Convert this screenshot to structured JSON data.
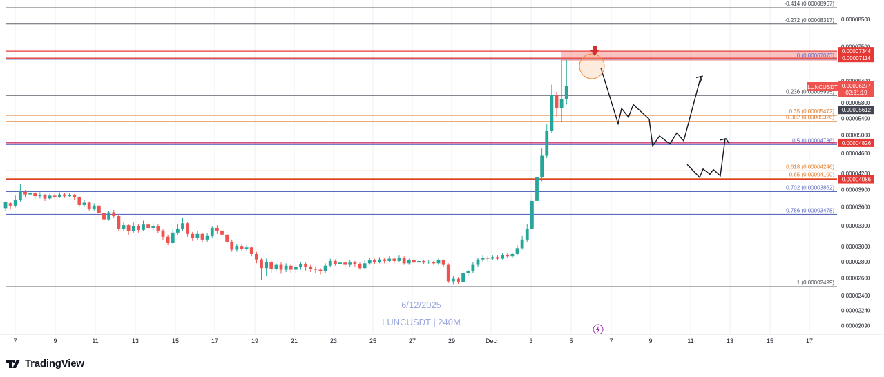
{
  "brand": {
    "name": "TradingView"
  },
  "watermark": {
    "date": "6/12/2025",
    "symbol": "LUNCUSDT | 240M"
  },
  "chart_data": {
    "type": "candlestick",
    "symbol_tag": "LUNCUSDT",
    "last_price": "0.00006277",
    "countdown": "02:31:19",
    "price_axis_ticks": [
      "0.00008500",
      "0.00007500",
      "0.00006400",
      "0.00005800",
      "0.00005400",
      "0.00005000",
      "0.00004600",
      "0.00004200",
      "0.00003900",
      "0.00003600",
      "0.00003300",
      "0.00003000",
      "0.00002800",
      "0.00002600",
      "0.00002400",
      "0.00002240",
      "0.00002090"
    ],
    "price_axis_values": [
      8.5e-05,
      7.5e-05,
      6.4e-05,
      5.8e-05,
      5.4e-05,
      5e-05,
      4.6e-05,
      4.2e-05,
      3.9e-05,
      3.6e-05,
      3.3e-05,
      3e-05,
      2.8e-05,
      2.6e-05,
      2.4e-05,
      2.24e-05,
      2.09e-05
    ],
    "price_badges": [
      {
        "text": "0.00007344",
        "value": 7.344e-05,
        "color": "#e53935"
      },
      {
        "text": "0.00007114",
        "value": 7.114e-05,
        "color": "#e53935"
      },
      {
        "text": "0.00005612",
        "value": 5.612e-05,
        "color": "#434651"
      },
      {
        "text": "0.00004826",
        "value": 4.826e-05,
        "color": "#e53935"
      },
      {
        "text": "0.00004086",
        "value": 4.086e-05,
        "color": "#e53935"
      }
    ],
    "x_labels": [
      "7",
      "9",
      "11",
      "13",
      "15",
      "17",
      "19",
      "21",
      "23",
      "25",
      "27",
      "29",
      "Dec",
      "3",
      "5",
      "7",
      "9",
      "11",
      "13",
      "15",
      "17"
    ],
    "fib_levels": [
      {
        "label": "-0.414 (0.00008967)",
        "value": 8.967e-05,
        "color": "#434651"
      },
      {
        "label": "-0.272 (0.00008317)",
        "value": 8.317e-05,
        "color": "#434651"
      },
      {
        "label": "0 (0.00007073)",
        "value": 7.073e-05,
        "color": "#5b6bc0"
      },
      {
        "label": "0.236 (0.00005995)",
        "value": 5.995e-05,
        "color": "#434651"
      },
      {
        "label": "0.35 (0.00005472)",
        "value": 5.472e-05,
        "color": "#e07a2a"
      },
      {
        "label": "0.382 (0.00005326)",
        "value": 5.326e-05,
        "color": "#e07a2a"
      },
      {
        "label": "0.5 (0.00004786)",
        "value": 4.786e-05,
        "color": "#5b6bc0"
      },
      {
        "label": "0.618 (0.00004246)",
        "value": 4.246e-05,
        "color": "#e07a2a"
      },
      {
        "label": "0.65 (0.00004100)",
        "value": 4.1e-05,
        "color": "#e07a2a"
      },
      {
        "label": "0.702 (0.00003862)",
        "value": 3.862e-05,
        "color": "#5b6bc0"
      },
      {
        "label": "0.786 (0.00003478)",
        "value": 3.478e-05,
        "color": "#5b6bc0"
      },
      {
        "label": "1 (0.00002499)",
        "value": 2.499e-05,
        "color": "#434651"
      }
    ],
    "horizontal_levels": [
      {
        "value": 7.344e-05,
        "color": "#e53935"
      },
      {
        "value": 7.114e-05,
        "color": "#e53935"
      },
      {
        "value": 4.826e-05,
        "color": "#c2185b"
      },
      {
        "value": 4.086e-05,
        "color": "#e53935"
      },
      {
        "value": 3.862e-05,
        "color": "#5b6bc0"
      },
      {
        "value": 3.478e-05,
        "color": "#5b6bc0"
      }
    ],
    "colors": {
      "up": "#26a69a",
      "down": "#ef5350",
      "bg": "#ffffff",
      "grid": "#eceff3"
    },
    "candles": [
      [
        3.58e-05,
        3.68e-05,
        3.69e-05,
        3.54e-05
      ],
      [
        3.66e-05,
        3.62e-05,
        3.68e-05,
        3.56e-05
      ],
      [
        3.62e-05,
        3.72e-05,
        3.79e-05,
        3.59e-05
      ],
      [
        3.72e-05,
        3.86e-05,
        4e-05,
        3.69e-05
      ],
      [
        3.86e-05,
        3.81e-05,
        3.89e-05,
        3.77e-05
      ],
      [
        3.81e-05,
        3.84e-05,
        3.88e-05,
        3.78e-05
      ],
      [
        3.84e-05,
        3.78e-05,
        3.86e-05,
        3.74e-05
      ],
      [
        3.78e-05,
        3.8e-05,
        3.85e-05,
        3.74e-05
      ],
      [
        3.8e-05,
        3.74e-05,
        3.82e-05,
        3.7e-05
      ],
      [
        3.74e-05,
        3.79e-05,
        3.84e-05,
        3.72e-05
      ],
      [
        3.79e-05,
        3.77e-05,
        3.83e-05,
        3.73e-05
      ],
      [
        3.77e-05,
        3.81e-05,
        3.85e-05,
        3.75e-05
      ],
      [
        3.81e-05,
        3.78e-05,
        3.84e-05,
        3.75e-05
      ],
      [
        3.78e-05,
        3.8e-05,
        3.83e-05,
        3.76e-05
      ],
      [
        3.8e-05,
        3.76e-05,
        3.82e-05,
        3.72e-05
      ],
      [
        3.76e-05,
        3.63e-05,
        3.78e-05,
        3.6e-05
      ],
      [
        3.63e-05,
        3.67e-05,
        3.71e-05,
        3.6e-05
      ],
      [
        3.67e-05,
        3.57e-05,
        3.69e-05,
        3.54e-05
      ],
      [
        3.57e-05,
        3.62e-05,
        3.66e-05,
        3.54e-05
      ],
      [
        3.62e-05,
        3.5e-05,
        3.64e-05,
        3.45e-05
      ],
      [
        3.5e-05,
        3.4e-05,
        3.52e-05,
        3.36e-05
      ],
      [
        3.4e-05,
        3.51e-05,
        3.53e-05,
        3.38e-05
      ],
      [
        3.51e-05,
        3.45e-05,
        3.55e-05,
        3.42e-05
      ],
      [
        3.45e-05,
        3.26e-05,
        3.47e-05,
        3.22e-05
      ],
      [
        3.26e-05,
        3.31e-05,
        3.36e-05,
        3.22e-05
      ],
      [
        3.31e-05,
        3.22e-05,
        3.33e-05,
        3.17e-05
      ],
      [
        3.22e-05,
        3.3e-05,
        3.36e-05,
        3.2e-05
      ],
      [
        3.3e-05,
        3.24e-05,
        3.33e-05,
        3.2e-05
      ],
      [
        3.24e-05,
        3.32e-05,
        3.38e-05,
        3.22e-05
      ],
      [
        3.32e-05,
        3.27e-05,
        3.35e-05,
        3.24e-05
      ],
      [
        3.27e-05,
        3.3e-05,
        3.34e-05,
        3.24e-05
      ],
      [
        3.3e-05,
        3.23e-05,
        3.32e-05,
        3.19e-05
      ],
      [
        3.23e-05,
        3.14e-05,
        3.25e-05,
        3.1e-05
      ],
      [
        3.14e-05,
        3.05e-05,
        3.17e-05,
        3.02e-05
      ],
      [
        3.05e-05,
        3.2e-05,
        3.25e-05,
        3.03e-05
      ],
      [
        3.2e-05,
        3.26e-05,
        3.33e-05,
        3.17e-05
      ],
      [
        3.26e-05,
        3.34e-05,
        3.43e-05,
        3.22e-05
      ],
      [
        3.34e-05,
        3.18e-05,
        3.36e-05,
        3.14e-05
      ],
      [
        3.18e-05,
        3.12e-05,
        3.21e-05,
        3.08e-05
      ],
      [
        3.12e-05,
        3.18e-05,
        3.22e-05,
        3.09e-05
      ],
      [
        3.18e-05,
        3.1e-05,
        3.2e-05,
        3.06e-05
      ],
      [
        3.1e-05,
        3.15e-05,
        3.19e-05,
        3.07e-05
      ],
      [
        3.15e-05,
        3.27e-05,
        3.3e-05,
        3.13e-05
      ],
      [
        3.27e-05,
        3.23e-05,
        3.31e-05,
        3.18e-05
      ],
      [
        3.23e-05,
        3.17e-05,
        3.25e-05,
        3.13e-05
      ],
      [
        3.17e-05,
        3.07e-05,
        3.19e-05,
        3.04e-05
      ],
      [
        3.07e-05,
        2.96e-05,
        3.1e-05,
        2.93e-05
      ],
      [
        2.96e-05,
        3.01e-05,
        3.04e-05,
        2.93e-05
      ],
      [
        3.01e-05,
        2.97e-05,
        3.03e-05,
        2.94e-05
      ],
      [
        2.97e-05,
        2.99e-05,
        3.02e-05,
        2.94e-05
      ],
      [
        2.99e-05,
        2.9e-05,
        3e-05,
        2.87e-05
      ],
      [
        2.9e-05,
        2.83e-05,
        2.93e-05,
        2.78e-05
      ],
      [
        2.83e-05,
        2.72e-05,
        2.85e-05,
        2.58e-05
      ],
      [
        2.72e-05,
        2.8e-05,
        2.84e-05,
        2.62e-05
      ],
      [
        2.8e-05,
        2.71e-05,
        2.82e-05,
        2.66e-05
      ],
      [
        2.71e-05,
        2.76e-05,
        2.78e-05,
        2.68e-05
      ],
      [
        2.76e-05,
        2.7e-05,
        2.79e-05,
        2.65e-05
      ],
      [
        2.7e-05,
        2.75e-05,
        2.78e-05,
        2.67e-05
      ],
      [
        2.75e-05,
        2.7e-05,
        2.77e-05,
        2.66e-05
      ],
      [
        2.7e-05,
        2.73e-05,
        2.76e-05,
        2.66e-05
      ],
      [
        2.73e-05,
        2.77e-05,
        2.8e-05,
        2.7e-05
      ],
      [
        2.77e-05,
        2.74e-05,
        2.79e-05,
        2.69e-05
      ],
      [
        2.74e-05,
        2.71e-05,
        2.76e-05,
        2.67e-05
      ],
      [
        2.71e-05,
        2.7e-05,
        2.74e-05,
        2.66e-05
      ],
      [
        2.7e-05,
        2.68e-05,
        2.72e-05,
        2.64e-05
      ],
      [
        2.68e-05,
        2.75e-05,
        2.78e-05,
        2.66e-05
      ],
      [
        2.75e-05,
        2.81e-05,
        2.84e-05,
        2.73e-05
      ],
      [
        2.81e-05,
        2.77e-05,
        2.83e-05,
        2.75e-05
      ],
      [
        2.77e-05,
        2.79e-05,
        2.82e-05,
        2.74e-05
      ],
      [
        2.79e-05,
        2.76e-05,
        2.81e-05,
        2.72e-05
      ],
      [
        2.76e-05,
        2.79e-05,
        2.82e-05,
        2.73e-05
      ],
      [
        2.79e-05,
        2.77e-05,
        2.81e-05,
        2.74e-05
      ],
      [
        2.77e-05,
        2.72e-05,
        2.79e-05,
        2.7e-05
      ],
      [
        2.72e-05,
        2.78e-05,
        2.82e-05,
        2.71e-05
      ],
      [
        2.78e-05,
        2.82e-05,
        2.85e-05,
        2.76e-05
      ],
      [
        2.82e-05,
        2.8e-05,
        2.84e-05,
        2.77e-05
      ],
      [
        2.8e-05,
        2.83e-05,
        2.86e-05,
        2.78e-05
      ],
      [
        2.83e-05,
        2.81e-05,
        2.85e-05,
        2.78e-05
      ],
      [
        2.81e-05,
        2.84e-05,
        2.87e-05,
        2.79e-05
      ],
      [
        2.84e-05,
        2.81e-05,
        2.86e-05,
        2.78e-05
      ],
      [
        2.81e-05,
        2.85e-05,
        2.88e-05,
        2.79e-05
      ],
      [
        2.85e-05,
        2.78e-05,
        2.87e-05,
        2.76e-05
      ],
      [
        2.78e-05,
        2.82e-05,
        2.84e-05,
        2.76e-05
      ],
      [
        2.82e-05,
        2.79e-05,
        2.84e-05,
        2.77e-05
      ],
      [
        2.79e-05,
        2.81e-05,
        2.83e-05,
        2.77e-05
      ],
      [
        2.81e-05,
        2.79e-05,
        2.82e-05,
        2.77e-05
      ],
      [
        2.79e-05,
        2.8e-05,
        2.82e-05,
        2.77e-05
      ],
      [
        2.8e-05,
        2.78e-05,
        2.81e-05,
        2.76e-05
      ],
      [
        2.78e-05,
        2.82e-05,
        2.84e-05,
        2.76e-05
      ],
      [
        2.82e-05,
        2.76e-05,
        2.83e-05,
        2.74e-05
      ],
      [
        2.76e-05,
        2.56e-05,
        2.78e-05,
        2.54e-05
      ],
      [
        2.56e-05,
        2.59e-05,
        2.62e-05,
        2.52e-05
      ],
      [
        2.59e-05,
        2.55e-05,
        2.61e-05,
        2.53e-05
      ],
      [
        2.55e-05,
        2.66e-05,
        2.68e-05,
        2.54e-05
      ],
      [
        2.66e-05,
        2.68e-05,
        2.71e-05,
        2.62e-05
      ],
      [
        2.68e-05,
        2.76e-05,
        2.8e-05,
        2.66e-05
      ],
      [
        2.76e-05,
        2.83e-05,
        2.85e-05,
        2.73e-05
      ],
      [
        2.83e-05,
        2.85e-05,
        2.88e-05,
        2.8e-05
      ],
      [
        2.85e-05,
        2.84e-05,
        2.87e-05,
        2.81e-05
      ],
      [
        2.84e-05,
        2.86e-05,
        2.88e-05,
        2.82e-05
      ],
      [
        2.86e-05,
        2.84e-05,
        2.88e-05,
        2.82e-05
      ],
      [
        2.84e-05,
        2.89e-05,
        2.91e-05,
        2.83e-05
      ],
      [
        2.89e-05,
        2.87e-05,
        2.91e-05,
        2.85e-05
      ],
      [
        2.87e-05,
        2.9e-05,
        2.92e-05,
        2.85e-05
      ],
      [
        2.9e-05,
        2.98e-05,
        3.02e-05,
        2.88e-05
      ],
      [
        2.98e-05,
        3.1e-05,
        3.15e-05,
        2.96e-05
      ],
      [
        3.1e-05,
        3.26e-05,
        3.33e-05,
        3.07e-05
      ],
      [
        3.26e-05,
        3.7e-05,
        3.78e-05,
        3.25e-05
      ],
      [
        3.7e-05,
        4.12e-05,
        4.2e-05,
        3.68e-05
      ],
      [
        4.12e-05,
        4.55e-05,
        4.7e-05,
        4.05e-05
      ],
      [
        4.55e-05,
        5.1e-05,
        5.25e-05,
        4.5e-05
      ],
      [
        5.1e-05,
        6e-05,
        6.3e-05,
        5.05e-05
      ],
      [
        6e-05,
        5.65e-05,
        6.1e-05,
        5.45e-05
      ],
      [
        5.65e-05,
        5.9e-05,
        7.05e-05,
        5.3e-05
      ],
      [
        5.9e-05,
        6.27e-05,
        7.05e-05,
        5.75e-05
      ]
    ],
    "projection_primary": [
      [
        6.8e-05,
        6.8e-05
      ],
      [
        5.27e-05,
        5.27e-05
      ],
      [
        5.65e-05,
        5.65e-05
      ],
      [
        5.43e-05,
        5.43e-05
      ],
      [
        5.75e-05,
        5.75e-05
      ],
      [
        5.38e-05,
        5.38e-05
      ],
      [
        4.76e-05,
        4.76e-05
      ],
      [
        4.98e-05,
        4.98e-05
      ],
      [
        4.8e-05,
        4.8e-05
      ],
      [
        5.05e-05,
        5.05e-05
      ],
      [
        4.87e-05,
        4.87e-05
      ],
      [
        6.55e-05,
        6.55e-05
      ]
    ],
    "projection_secondary": [
      [
        4.37e-05,
        4.37e-05
      ],
      [
        4.12e-05,
        4.12e-05
      ],
      [
        4.28e-05,
        4.28e-05
      ],
      [
        4.18e-05,
        4.18e-05
      ],
      [
        4.27e-05,
        4.27e-05
      ],
      [
        4.15e-05,
        4.15e-05
      ],
      [
        4.92e-05,
        4.92e-05
      ]
    ]
  }
}
